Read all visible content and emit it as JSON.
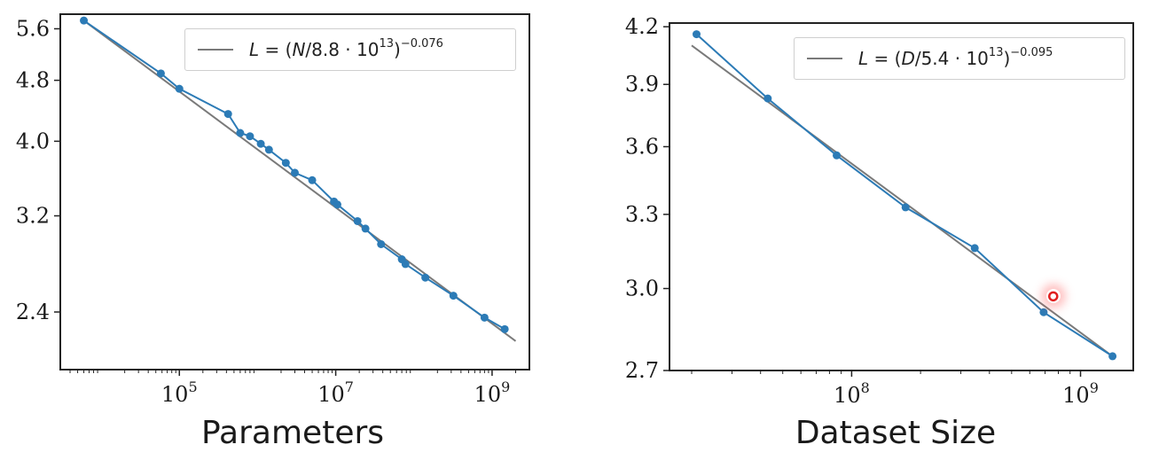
{
  "chart_data": [
    {
      "type": "line",
      "xlabel": "Parameters",
      "ylabel": "",
      "xscale": "log",
      "yscale": "log",
      "xlim": [
        3000,
        3000000000
      ],
      "ylim": [
        2.02,
        5.85
      ],
      "x_ticks": [
        {
          "base": "10",
          "exp": "5",
          "v": 100000
        },
        {
          "base": "10",
          "exp": "7",
          "v": 10000000
        },
        {
          "base": "10",
          "exp": "9",
          "v": 1000000000
        }
      ],
      "y_ticks": [
        "2.4",
        "3.2",
        "4.0",
        "4.8",
        "5.6"
      ],
      "legend": {
        "position": "top-right",
        "pre": "L",
        "mid": " = (",
        "var": "N",
        "coef": "/8.8 · 10",
        "coef_exp": "13",
        "close": ")",
        "exp": "−0.076"
      },
      "series": [
        {
          "kind": "data",
          "color": "#2c7bb6",
          "points": [
            [
              6000,
              5.74
            ],
            [
              58000,
              4.9
            ],
            [
              100000,
              4.68
            ],
            [
              420000,
              4.34
            ],
            [
              600000,
              4.1
            ],
            [
              800000,
              4.06
            ],
            [
              1100000,
              3.97
            ],
            [
              1400000,
              3.9
            ],
            [
              2300000,
              3.75
            ],
            [
              3000000,
              3.64
            ],
            [
              5000000,
              3.56
            ],
            [
              9500000,
              3.34
            ],
            [
              10500000,
              3.31
            ],
            [
              19000000,
              3.15
            ],
            [
              24000000,
              3.08
            ],
            [
              38000000,
              2.94
            ],
            [
              70000000,
              2.81
            ],
            [
              78000000,
              2.77
            ],
            [
              140000000,
              2.66
            ],
            [
              320000000,
              2.52
            ],
            [
              800000000,
              2.36
            ],
            [
              1450000000,
              2.28
            ]
          ]
        },
        {
          "kind": "fit",
          "color": "#7a7a7a",
          "points": [
            [
              6000,
              5.74
            ],
            [
              2000000000,
              2.2
            ]
          ]
        }
      ]
    },
    {
      "type": "line",
      "xlabel": "Dataset Size",
      "ylabel": "",
      "xscale": "log",
      "yscale": "log",
      "xlim": [
        16000000,
        1700000000
      ],
      "ylim": [
        2.7,
        4.22
      ],
      "x_ticks": [
        {
          "base": "10",
          "exp": "8",
          "v": 100000000
        },
        {
          "base": "10",
          "exp": "9",
          "v": 1000000000
        }
      ],
      "y_ticks": [
        "2.7",
        "3.0",
        "3.3",
        "3.6",
        "3.9",
        "4.2"
      ],
      "legend": {
        "position": "top-right",
        "pre": "L",
        "mid": " = (",
        "var": "D",
        "coef": "/5.4 · 10",
        "coef_exp": "13",
        "close": ")",
        "exp": "−0.095"
      },
      "highlight_point": [
        760000000,
        2.97
      ],
      "series": [
        {
          "kind": "data",
          "color": "#2c7bb6",
          "points": [
            [
              21000000,
              4.16
            ],
            [
              43000000,
              3.83
            ],
            [
              86000000,
              3.56
            ],
            [
              172000000,
              3.33
            ],
            [
              345000000,
              3.16
            ],
            [
              690000000,
              2.91
            ],
            [
              1380000000,
              2.75
            ]
          ]
        },
        {
          "kind": "fit",
          "color": "#7a7a7a",
          "points": [
            [
              20000000,
              4.1
            ],
            [
              1380000000,
              2.75
            ]
          ]
        }
      ]
    }
  ]
}
